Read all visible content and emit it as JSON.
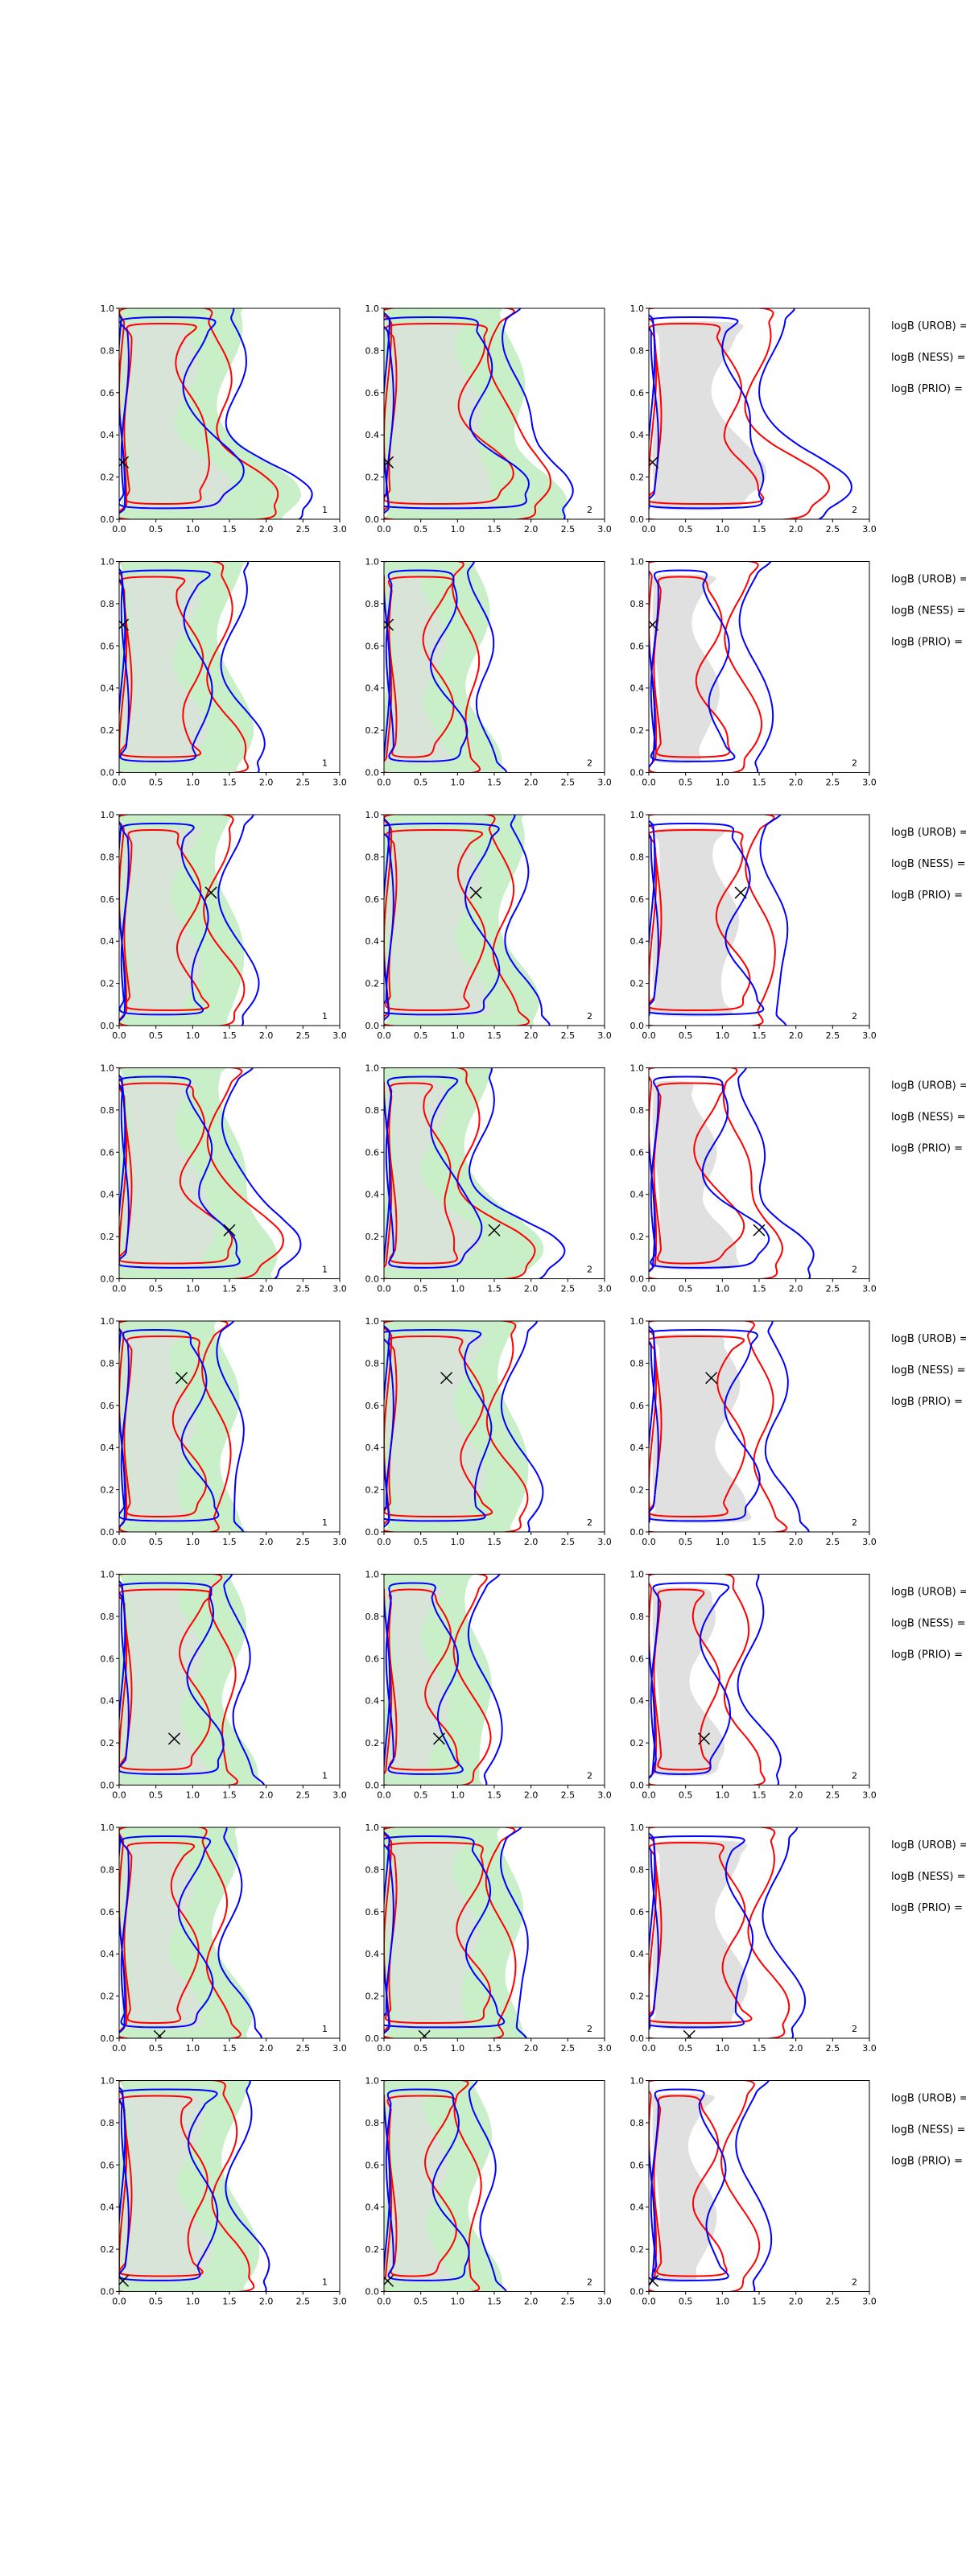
{
  "figure": {
    "colors": {
      "green_fill": "#c8efc8",
      "grey_fill": "#e0e0e0",
      "blue_line": "#0000ff",
      "red_line": "#ff0000",
      "marker": "#000000"
    },
    "annotation_labels": [
      "logB (UROB) =",
      "logB (NESS) =",
      "logB (PRIO) ="
    ]
  },
  "chart_data": {
    "type": "contour_grid",
    "rows": 8,
    "cols": 3,
    "xlim": [
      0.0,
      3.0
    ],
    "ylim": [
      0.0,
      1.0
    ],
    "xticks": [
      "0.0",
      "0.5",
      "1.0",
      "1.5",
      "2.0",
      "2.5",
      "3.0"
    ],
    "yticks": [
      "0.0",
      "0.2",
      "0.4",
      "0.6",
      "0.8",
      "1.0"
    ],
    "panel_labels": [
      "1",
      "2",
      "2"
    ],
    "grid": false,
    "markers": [
      {
        "row": 1,
        "x": 0.05,
        "y": 0.27
      },
      {
        "row": 2,
        "x": 0.05,
        "y": 0.7
      },
      {
        "row": 3,
        "x": 1.25,
        "y": 0.63
      },
      {
        "row": 4,
        "x": 1.5,
        "y": 0.23
      },
      {
        "row": 5,
        "x": 0.85,
        "y": 0.73
      },
      {
        "row": 6,
        "x": 0.75,
        "y": 0.22
      },
      {
        "row": 7,
        "x": 0.55,
        "y": 0.01
      },
      {
        "row": 8,
        "x": 0.05,
        "y": 0.05
      }
    ]
  }
}
